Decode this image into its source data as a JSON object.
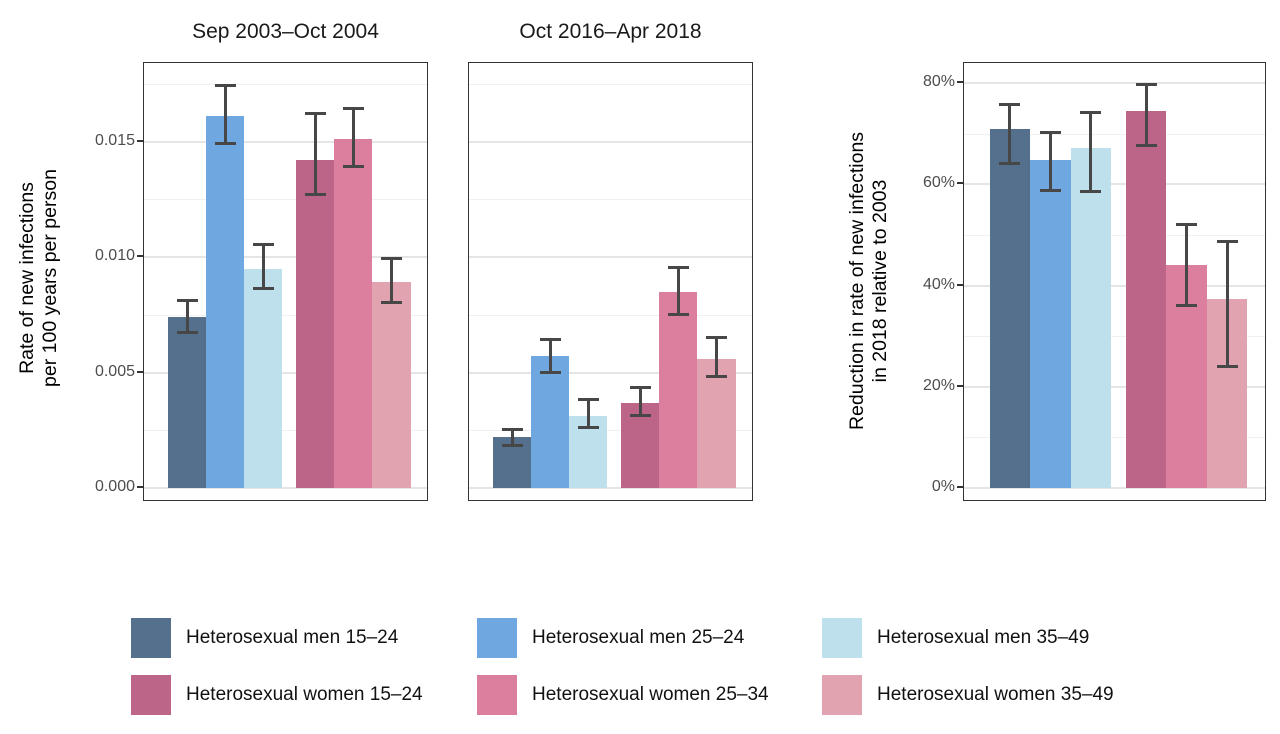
{
  "palette": [
    "#54708C",
    "#6FA7E1",
    "#BEDFEC",
    "#BD6589",
    "#DC7F9E",
    "#E2A3B0"
  ],
  "error_bar_color": "#474747",
  "categories": [
    "Heterosexual men 15–24",
    "Heterosexual men 25–24",
    "Heterosexual men 35–49",
    "Heterosexual women 15–24",
    "Heterosexual women 25–34",
    "Heterosexual women 35–49"
  ],
  "chart_data": [
    {
      "type": "bar",
      "title": "Sep 2003–Oct 2004",
      "ylabel_line1": "Rate of new infections",
      "ylabel_line2": "per 100 years per person",
      "ylim": [
        0,
        0.0184
      ],
      "yticks": [
        0,
        0.005,
        0.01,
        0.015
      ],
      "ytick_labels": [
        "0.000",
        "0.005",
        "0.010",
        "0.015"
      ],
      "grid_minor": [
        0.0025,
        0.0075,
        0.0125,
        0.0175
      ],
      "legend_position": "bottom",
      "values": [
        0.0074,
        0.0161,
        0.0095,
        0.0142,
        0.0151,
        0.0089
      ],
      "error_low": [
        0.0067,
        0.0149,
        0.0086,
        0.0127,
        0.0139,
        0.008
      ],
      "error_high": [
        0.0082,
        0.0175,
        0.0106,
        0.0163,
        0.0165,
        0.01
      ]
    },
    {
      "type": "bar",
      "title": "Oct 2016–Apr 2018",
      "ylim": [
        0,
        0.0184
      ],
      "yticks": [
        0,
        0.005,
        0.01,
        0.015
      ],
      "grid_minor": [
        0.0025,
        0.0075,
        0.0125,
        0.0175
      ],
      "values": [
        0.0022,
        0.0057,
        0.0031,
        0.0037,
        0.0085,
        0.0056
      ],
      "error_low": [
        0.0018,
        0.005,
        0.0026,
        0.0031,
        0.0075,
        0.0048
      ],
      "error_high": [
        0.0026,
        0.0065,
        0.0039,
        0.0044,
        0.0096,
        0.0066
      ]
    },
    {
      "type": "bar",
      "title": "",
      "ylabel_line1": "Reduction in rate of new infections",
      "ylabel_line2": "in 2018 relative to 2003",
      "ylim": [
        0,
        84
      ],
      "yticks": [
        0,
        20,
        40,
        60,
        80
      ],
      "ytick_labels": [
        "0%",
        "20%",
        "40%",
        "60%",
        "80%"
      ],
      "grid_minor": [
        10,
        30,
        50,
        70
      ],
      "values": [
        71.0,
        64.8,
        67.2,
        74.5,
        44.0,
        37.4
      ],
      "error_low": [
        64.0,
        58.7,
        58.5,
        67.5,
        36.0,
        24.0
      ],
      "error_high": [
        76.0,
        70.5,
        74.6,
        80.0,
        52.4,
        49.0
      ]
    }
  ]
}
